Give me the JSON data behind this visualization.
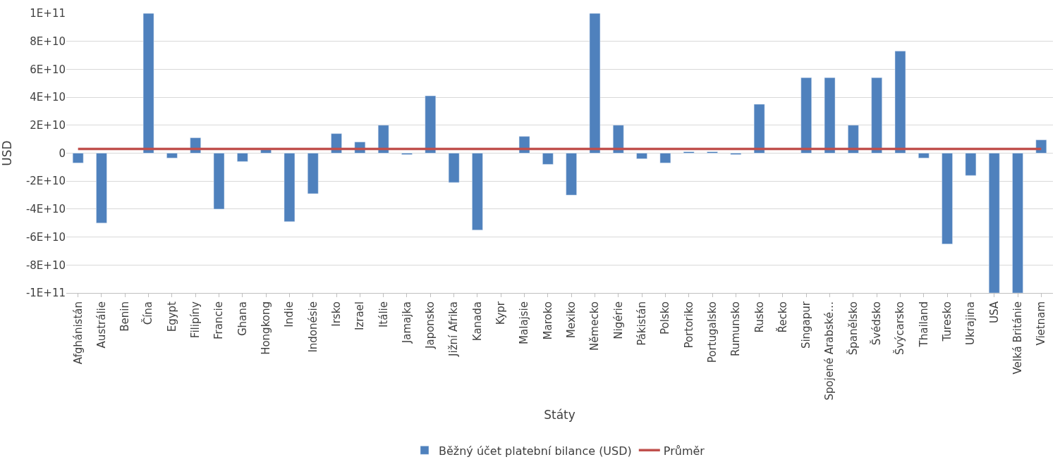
{
  "chart_data": {
    "type": "bar",
    "xlabel": "Státy",
    "ylabel": "USD",
    "categories": [
      "Afghánistán",
      "Austrálie",
      "Benin",
      "Čína",
      "Egypt",
      "Filipíny",
      "Francie",
      "Ghana",
      "Hongkong",
      "Indie",
      "Indonésie",
      "Irsko",
      "Izrael",
      "Itálie",
      "Jamajka",
      "Japonsko",
      "Jižní Afrika",
      "Kanada",
      "Kypr",
      "Malajsie",
      "Maroko",
      "Mexiko",
      "Německo",
      "Nigérie",
      "Pákistán",
      "Polsko",
      "Portoriko",
      "Portugalsko",
      "Rumunsko",
      "Rusko",
      "Řecko",
      "Singapur",
      "Spojené Arabské…",
      "Španělsko",
      "Švédsko",
      "Švýcarsko",
      "Thailand",
      "Turesko",
      "Ukrajina",
      "USA",
      "Velká Británie",
      "Vietnam"
    ],
    "series": [
      {
        "name": "Běžný účet platební bilance (USD)",
        "color": "#4f81bd",
        "values": [
          -7000000000.0,
          -50000000000.0,
          null,
          100000000000.0,
          -3500000000.0,
          11000000000.0,
          -40000000000.0,
          -6000000000.0,
          3000000000.0,
          -49000000000.0,
          -29000000000.0,
          14000000000.0,
          8000000000.0,
          20000000000.0,
          -1000000000.0,
          41000000000.0,
          -21000000000.0,
          -55000000000.0,
          null,
          12000000000.0,
          -8000000000.0,
          -30000000000.0,
          100000000000.0,
          20000000000.0,
          -4000000000.0,
          -7000000000.0,
          1000000000.0,
          1000000000.0,
          -1000000000.0,
          35000000000.0,
          null,
          54000000000.0,
          54000000000.0,
          20000000000.0,
          54000000000.0,
          73000000000.0,
          -3500000000.0,
          -65000000000.0,
          -16000000000.0,
          -100000000000.0,
          -100000000000.0,
          9500000000.0
        ]
      },
      {
        "name": "Průměr",
        "color": "#c0504d",
        "type": "line",
        "values": [
          3000000000.0,
          3000000000.0,
          3000000000.0,
          3000000000.0,
          3000000000.0,
          3000000000.0,
          3000000000.0,
          3000000000.0,
          3000000000.0,
          3000000000.0,
          3000000000.0,
          3000000000.0,
          3000000000.0,
          3000000000.0,
          3000000000.0,
          3000000000.0,
          3000000000.0,
          3000000000.0,
          3000000000.0,
          3000000000.0,
          3000000000.0,
          3000000000.0,
          3000000000.0,
          3000000000.0,
          3000000000.0,
          3000000000.0,
          3000000000.0,
          3000000000.0,
          3000000000.0,
          3000000000.0,
          3000000000.0,
          3000000000.0,
          3000000000.0,
          3000000000.0,
          3000000000.0,
          3000000000.0,
          3000000000.0,
          3000000000.0,
          3000000000.0,
          3000000000.0,
          3000000000.0,
          3000000000.0
        ]
      }
    ],
    "ylim": [
      -100000000000.0,
      100000000000.0
    ],
    "yticks": [
      {
        "value": -100000000000.0,
        "label": "-1E+11"
      },
      {
        "value": -80000000000.0,
        "label": "-8E+10"
      },
      {
        "value": -60000000000.0,
        "label": "-6E+10"
      },
      {
        "value": -40000000000.0,
        "label": "-4E+10"
      },
      {
        "value": -20000000000.0,
        "label": "-2E+10"
      },
      0,
      {
        "value": 20000000000.0,
        "label": "2E+10"
      },
      {
        "value": 40000000000.0,
        "label": "4E+10"
      },
      {
        "value": 60000000000.0,
        "label": "6E+10"
      },
      {
        "value": 80000000000.0,
        "label": "8E+10"
      },
      {
        "value": 100000000000.0,
        "label": "1E+11"
      }
    ],
    "grid": "y",
    "legend": "bottom",
    "marker": "none",
    "line_style": "solid"
  }
}
